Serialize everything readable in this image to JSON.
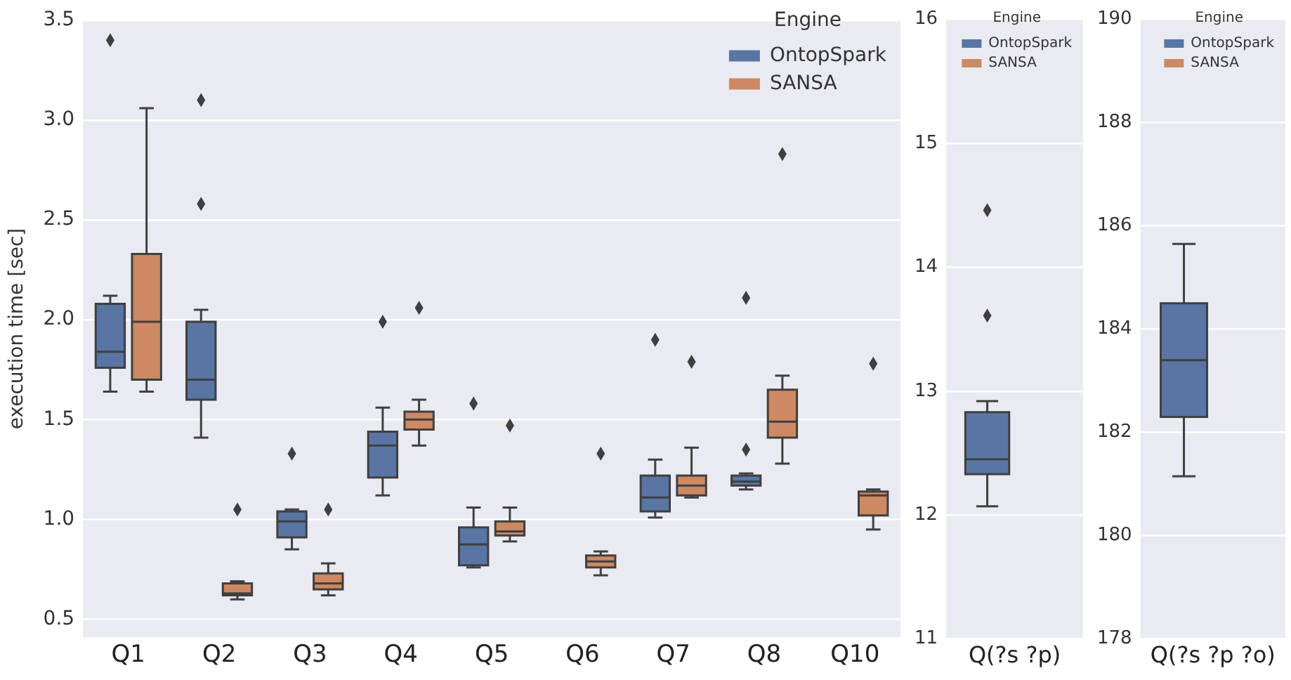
{
  "chart_data": [
    {
      "type": "box",
      "ylabel": "execution time [sec]",
      "legend_title": "Engine",
      "legend": "top right",
      "grid": "y",
      "categories": [
        "Q1",
        "Q2",
        "Q3",
        "Q4",
        "Q5",
        "Q6",
        "Q7",
        "Q8",
        "Q10"
      ],
      "ylim": [
        0.41,
        3.5
      ],
      "yticks": [
        {
          "value": 0.5,
          "label": "0.5"
        },
        {
          "value": 1,
          "label": "1.0"
        },
        {
          "value": 1.5,
          "label": "1.5"
        },
        {
          "value": 2,
          "label": "2.0"
        },
        {
          "value": 2.5,
          "label": "2.5"
        },
        {
          "value": 3,
          "label": "3.0"
        },
        {
          "value": 3.5,
          "label": "3.5"
        }
      ],
      "series": [
        {
          "name": "OntopSpark",
          "color": "#5975a4",
          "boxes": [
            {
              "low": 1.64,
              "q1": 1.76,
              "median": 1.84,
              "q3": 2.08,
              "high": 2.12,
              "outliers": [
                3.4
              ]
            },
            {
              "low": 1.41,
              "q1": 1.6,
              "median": 1.7,
              "q3": 1.99,
              "high": 2.05,
              "outliers": [
                3.1,
                2.58
              ]
            },
            {
              "low": 0.85,
              "q1": 0.91,
              "median": 0.99,
              "q3": 1.04,
              "high": 1.05,
              "outliers": [
                1.33
              ]
            },
            {
              "low": 1.12,
              "q1": 1.21,
              "median": 1.37,
              "q3": 1.44,
              "high": 1.56,
              "outliers": [
                1.99
              ]
            },
            {
              "low": 0.76,
              "q1": 0.77,
              "median": 0.875,
              "q3": 0.96,
              "high": 1.06,
              "outliers": [
                1.58
              ]
            },
            null,
            {
              "low": 1.01,
              "q1": 1.04,
              "median": 1.11,
              "q3": 1.22,
              "high": 1.3,
              "outliers": [
                1.9
              ]
            },
            {
              "low": 1.15,
              "q1": 1.17,
              "median": 1.19,
              "q3": 1.22,
              "high": 1.23,
              "outliers": [
                2.11,
                1.35
              ]
            },
            null
          ]
        },
        {
          "name": "SANSA",
          "color": "#cc8963",
          "boxes": [
            {
              "low": 1.64,
              "q1": 1.7,
              "median": 1.99,
              "q3": 2.33,
              "high": 3.06
            },
            {
              "low": 0.6,
              "q1": 0.62,
              "median": 0.63,
              "q3": 0.68,
              "high": 0.69,
              "outliers": [
                1.05
              ]
            },
            {
              "low": 0.62,
              "q1": 0.65,
              "median": 0.68,
              "q3": 0.73,
              "high": 0.78,
              "outliers": [
                1.05
              ]
            },
            {
              "low": 1.37,
              "q1": 1.45,
              "median": 1.5,
              "q3": 1.54,
              "high": 1.6,
              "outliers": [
                2.06
              ]
            },
            {
              "low": 0.89,
              "q1": 0.92,
              "median": 0.94,
              "q3": 0.99,
              "high": 1.06,
              "outliers": [
                1.47
              ]
            },
            {
              "low": 0.72,
              "q1": 0.76,
              "median": 0.79,
              "q3": 0.82,
              "high": 0.84,
              "outliers": [
                1.33
              ]
            },
            {
              "low": 1.11,
              "q1": 1.12,
              "median": 1.17,
              "q3": 1.22,
              "high": 1.36,
              "outliers": [
                1.79
              ]
            },
            {
              "low": 1.28,
              "q1": 1.41,
              "median": 1.49,
              "q3": 1.65,
              "high": 1.72,
              "outliers": [
                2.83
              ]
            },
            {
              "low": 0.95,
              "q1": 1.02,
              "median": 1.12,
              "q3": 1.14,
              "high": 1.15,
              "outliers": [
                1.78
              ]
            }
          ]
        }
      ]
    },
    {
      "type": "box",
      "legend_title": "Engine",
      "legend": "top right",
      "grid": "y",
      "categories": [
        "Q(?s ?p)"
      ],
      "ylim": [
        11,
        16
      ],
      "yticks": [
        11,
        12,
        13,
        14,
        15,
        16
      ],
      "series": [
        {
          "name": "OntopSpark",
          "color": "#5975a4",
          "boxes": [
            {
              "low": 12.07,
              "q1": 12.33,
              "median": 12.45,
              "q3": 12.83,
              "high": 12.92,
              "outliers": [
                14.46,
                13.61
              ]
            }
          ]
        },
        {
          "name": "SANSA",
          "color": "#cc8963",
          "boxes": [
            null
          ]
        }
      ]
    },
    {
      "type": "box",
      "legend_title": "Engine",
      "legend": "top right",
      "grid": "y",
      "categories": [
        "Q(?s ?p ?o)"
      ],
      "ylim": [
        178,
        190
      ],
      "yticks": [
        178,
        180,
        182,
        184,
        186,
        188,
        190
      ],
      "series": [
        {
          "name": "OntopSpark",
          "color": "#5975a4",
          "boxes": [
            {
              "low": 181.15,
              "q1": 182.3,
              "median": 183.4,
              "q3": 184.5,
              "high": 185.65
            }
          ]
        },
        {
          "name": "SANSA",
          "color": "#cc8963",
          "boxes": [
            null
          ]
        }
      ]
    }
  ]
}
